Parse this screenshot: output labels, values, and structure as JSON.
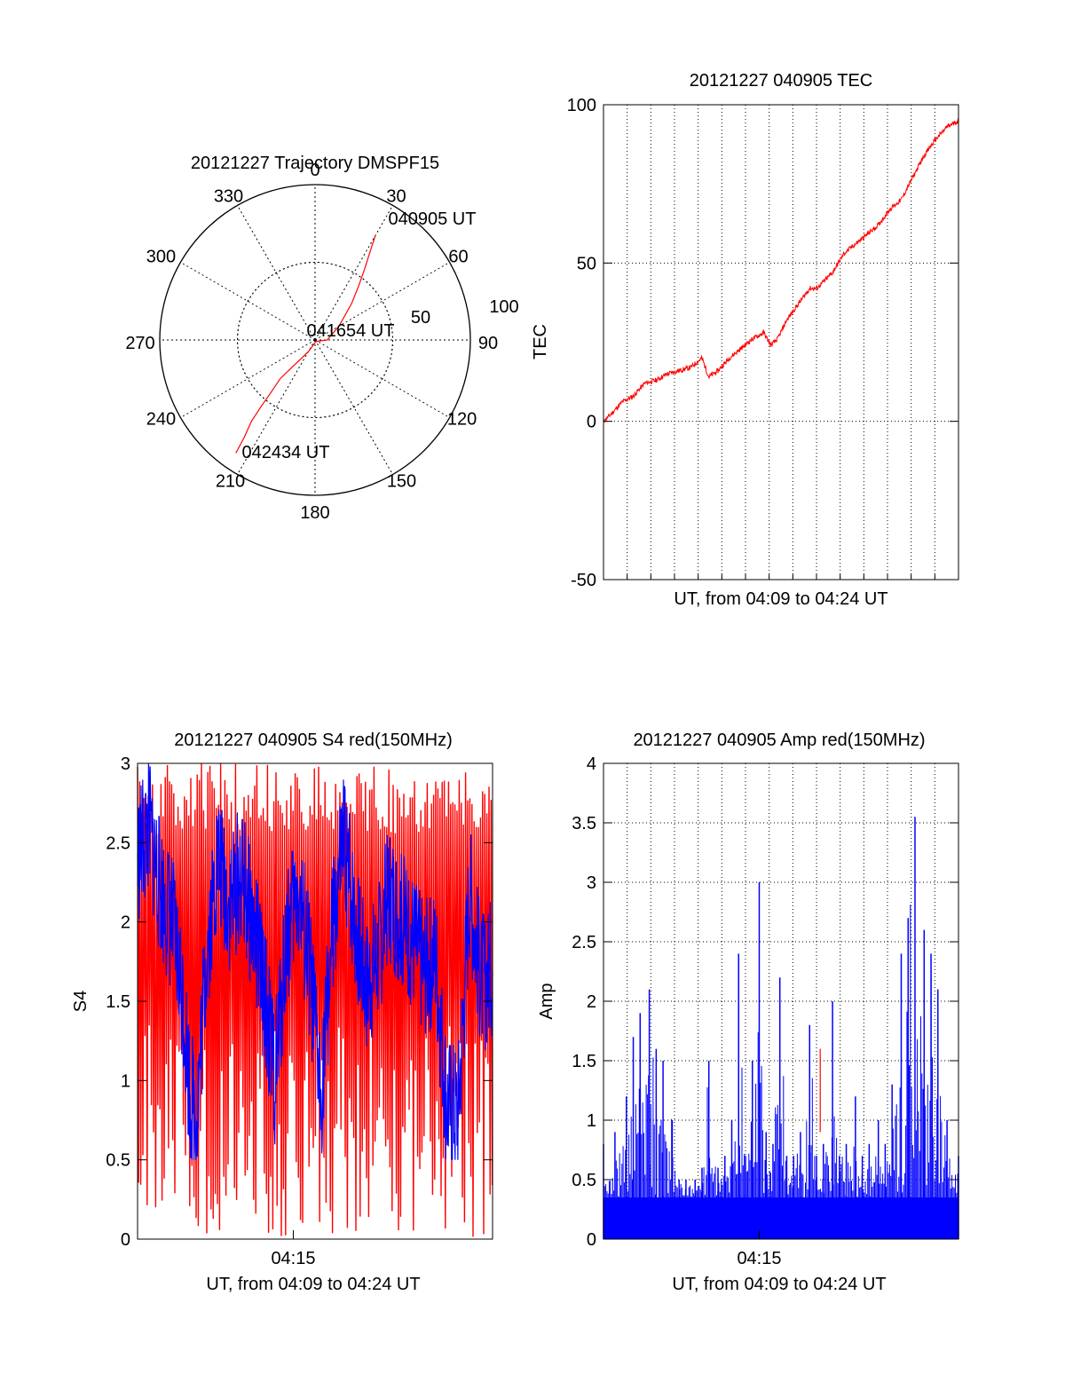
{
  "colors": {
    "red": "#ff0000",
    "blue": "#0000ff",
    "axis": "#000000"
  },
  "chart_data": [
    {
      "type": "polar",
      "title": "20121227 Trajectory DMSPF15",
      "angle_labels": [
        "0",
        "30",
        "60",
        "90",
        "120",
        "150",
        "180",
        "210",
        "240",
        "270",
        "300",
        "330"
      ],
      "radial_labels": [
        "50",
        "100"
      ],
      "radial_values": [
        50,
        100
      ],
      "r_max": 100,
      "grid": true,
      "series": [
        {
          "color": "red",
          "points": [
            {
              "az": 30,
              "el": 20
            },
            {
              "az": 32,
              "el": 30
            },
            {
              "az": 35,
              "el": 40
            },
            {
              "az": 39,
              "el": 50
            },
            {
              "az": 45,
              "el": 60
            },
            {
              "az": 60,
              "el": 74
            },
            {
              "az": 90,
              "el": 83
            },
            {
              "az": 150,
              "el": 89
            },
            {
              "az": 210,
              "el": 82
            },
            {
              "az": 220,
              "el": 70
            },
            {
              "az": 222,
              "el": 60
            },
            {
              "az": 220,
              "el": 50
            },
            {
              "az": 219,
              "el": 40
            },
            {
              "az": 218,
              "el": 30
            },
            {
              "az": 216,
              "el": 20
            },
            {
              "az": 215,
              "el": 10
            }
          ]
        }
      ],
      "annotations": [
        {
          "text": "040905 UT",
          "az": 34,
          "el": 16
        },
        {
          "text": "041654 UT",
          "az": 80,
          "el": 86
        },
        {
          "text": "042434 UT",
          "az": 195,
          "el": 4
        }
      ]
    },
    {
      "type": "line",
      "title": "20121227 040905 TEC",
      "xlabel": "UT, from 04:09 to 04:24 UT",
      "ylabel": "TEC",
      "ylim": [
        -50,
        100
      ],
      "yticks": [
        -50,
        0,
        50,
        100
      ],
      "ytick_labels": [
        "-50",
        "0",
        "50",
        "100"
      ],
      "xlim": [
        0,
        15.5
      ],
      "grid": true,
      "series": [
        {
          "color": "red",
          "x": [
            0,
            0.3,
            0.8,
            1.3,
            1.8,
            2.3,
            2.8,
            3.3,
            3.8,
            4.3,
            4.6,
            5.0,
            5.5,
            6.0,
            6.5,
            7.0,
            7.3,
            7.6,
            8.0,
            8.5,
            9.0,
            9.3,
            9.6,
            10.0,
            10.5,
            11.0,
            11.5,
            12.0,
            12.5,
            13.0,
            13.5,
            14.0,
            14.5,
            15.0,
            15.5
          ],
          "y": [
            0,
            2,
            6,
            8,
            12,
            13,
            15,
            16,
            17,
            20,
            14,
            16,
            20,
            23,
            26,
            28,
            24,
            26,
            32,
            37,
            42,
            42,
            44,
            47,
            53,
            56,
            59,
            62,
            67,
            70,
            77,
            84,
            89,
            93,
            95
          ]
        }
      ]
    },
    {
      "type": "line",
      "title": "20121227 040905 S4 red(150MHz)",
      "xlabel": "UT, from 04:09 to 04:24 UT",
      "ylabel": "S4",
      "ylim": [
        0,
        3
      ],
      "yticks": [
        0,
        0.5,
        1,
        1.5,
        2,
        2.5,
        3
      ],
      "ytick_labels": [
        "0",
        "0.5",
        "1",
        "1.5",
        "2",
        "2.5",
        "3"
      ],
      "xlim": [
        0,
        15.5
      ],
      "xtick_labels": [
        "04:15"
      ],
      "xtick_values": [
        6.8
      ],
      "grid": false,
      "series": [
        {
          "color": "red",
          "note": "dense oscillation between 0 and 3",
          "x": [
            0,
            15.5
          ],
          "y": [
            0,
            3
          ]
        },
        {
          "color": "blue",
          "x": [
            0,
            0.5,
            1.0,
            1.5,
            2.0,
            2.3,
            2.6,
            3.0,
            3.5,
            4.0,
            4.5,
            5.0,
            5.5,
            6.0,
            6.5,
            7.0,
            7.5,
            8.0,
            8.5,
            9.0,
            9.5,
            10.0,
            10.5,
            11.0,
            11.5,
            12.0,
            12.5,
            13.0,
            13.5,
            14.0,
            14.5,
            15.0,
            15.5
          ],
          "y": [
            2.4,
            2.6,
            2.2,
            2.0,
            1.5,
            0.9,
            0.8,
            1.8,
            2.4,
            2.1,
            2.3,
            2.0,
            1.6,
            1.0,
            1.9,
            2.2,
            1.7,
            0.9,
            1.9,
            2.5,
            2.0,
            1.6,
            1.8,
            2.2,
            2.0,
            1.9,
            1.7,
            1.8,
            0.85,
            0.8,
            2.2,
            1.6,
            1.7
          ]
        }
      ]
    },
    {
      "type": "bar",
      "title": "20121227 040905 Amp red(150MHz)",
      "xlabel": "UT, from 04:09 to 04:24 UT",
      "ylabel": "Amp",
      "ylim": [
        0,
        4
      ],
      "yticks": [
        0,
        0.5,
        1,
        1.5,
        2,
        2.5,
        3,
        3.5,
        4
      ],
      "ytick_labels": [
        "0",
        "0.5",
        "1",
        "1.5",
        "2",
        "2.5",
        "3",
        "3.5",
        "4"
      ],
      "xlim": [
        0,
        15.5
      ],
      "xtick_labels": [
        "04:15"
      ],
      "xtick_values": [
        6.8
      ],
      "grid": true,
      "series": [
        {
          "color": "blue",
          "x": [
            0,
            0.5,
            1.0,
            1.3,
            1.6,
            2.0,
            2.3,
            2.6,
            3.0,
            3.3,
            3.6,
            4.0,
            4.3,
            4.6,
            5.0,
            5.3,
            5.6,
            5.9,
            6.2,
            6.5,
            6.8,
            7.1,
            7.4,
            7.7,
            8.0,
            8.3,
            8.6,
            9.0,
            9.3,
            9.6,
            10.0,
            10.3,
            10.6,
            11.0,
            11.3,
            11.6,
            12.0,
            12.3,
            12.6,
            13.0,
            13.3,
            13.6,
            14.0,
            14.3,
            14.6,
            15.0,
            15.5
          ],
          "y": [
            0.8,
            0.9,
            1.2,
            1.7,
            1.9,
            2.1,
            1.6,
            1.5,
            1.0,
            0.5,
            0.5,
            0.5,
            0.6,
            1.5,
            0.6,
            0.7,
            1.0,
            2.4,
            0.7,
            1.5,
            3.0,
            0.9,
            0.8,
            2.2,
            0.7,
            0.7,
            0.9,
            1.8,
            0.7,
            0.8,
            2.0,
            0.7,
            0.8,
            1.2,
            0.7,
            0.8,
            1.0,
            0.8,
            1.3,
            2.4,
            2.7,
            3.55,
            2.6,
            2.4,
            2.1,
            1.0,
            0.7
          ]
        },
        {
          "color": "red",
          "x": [
            8.3
          ],
          "y": [
            1.6
          ]
        }
      ]
    }
  ]
}
